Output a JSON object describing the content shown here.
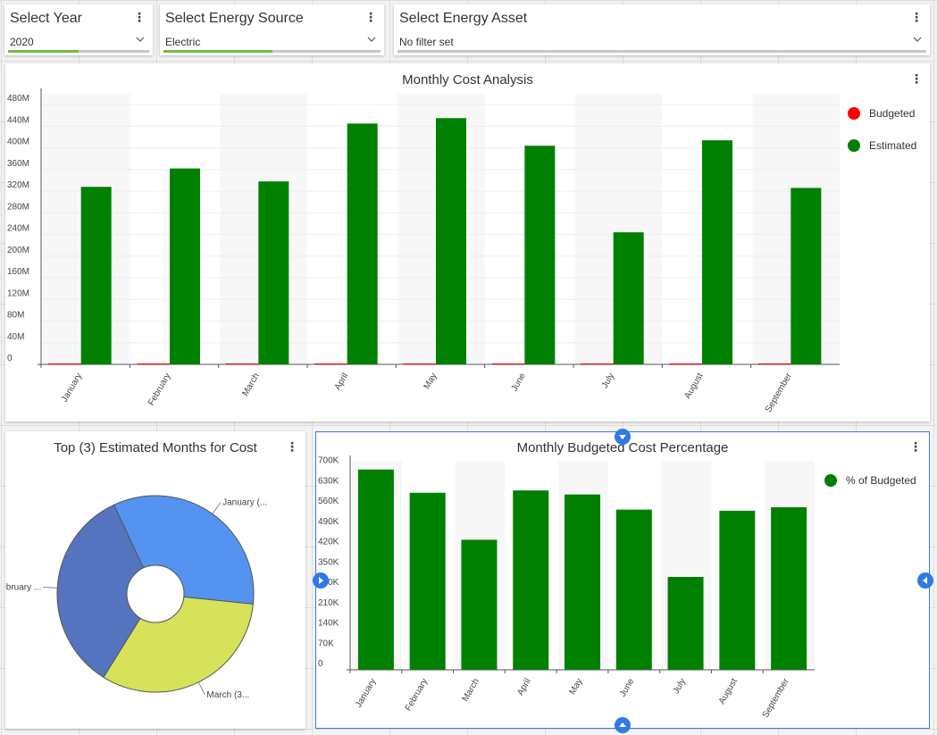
{
  "filters": [
    {
      "title": "Select Year",
      "value": "2020",
      "fill_fraction": 0.5
    },
    {
      "title": "Select Energy Source",
      "value": "Electric",
      "fill_fraction": 0.5
    },
    {
      "title": "Select Energy Asset",
      "value": "No filter set",
      "fill_fraction": 0
    }
  ],
  "menu_icon": "more-vertical-icon",
  "accent_color": "#6fbe44",
  "selection_color": "#2f7ae5",
  "monthly_cost": {
    "title": "Monthly Cost Analysis",
    "chart_data": {
      "type": "bar",
      "categories": [
        "January",
        "February",
        "March",
        "April",
        "May",
        "June",
        "July",
        "August",
        "September"
      ],
      "series": [
        {
          "name": "Budgeted",
          "color": "#ff0000",
          "values": [
            0.3,
            0.3,
            0.3,
            0.3,
            0.3,
            0.3,
            0.3,
            0.3,
            0.3
          ]
        },
        {
          "name": "Estimated",
          "color": "#008000",
          "values": [
            328,
            362,
            338,
            445,
            455,
            404,
            244,
            414,
            326
          ]
        }
      ],
      "ylim": [
        0,
        500
      ],
      "yticks": [
        "0",
        "40M",
        "80M",
        "120M",
        "160M",
        "200M",
        "240M",
        "280M",
        "320M",
        "360M",
        "400M",
        "440M",
        "480M"
      ],
      "ytick_values": [
        0,
        40,
        80,
        120,
        160,
        200,
        240,
        280,
        320,
        360,
        400,
        440,
        480
      ],
      "legend_position": "top-right",
      "grid": true
    }
  },
  "top_months": {
    "title": "Top (3) Estimated Months for Cost",
    "chart_data": {
      "type": "pie",
      "donut": true,
      "labels": [
        "January (...",
        "March (3...",
        "February ..."
      ],
      "values": [
        33.6,
        32.2,
        34.2
      ],
      "colors": [
        "#5593f0",
        "#d6e25a",
        "#5574c0"
      ]
    }
  },
  "budgeted_pct": {
    "title": "Monthly Budgeted Cost Percentage",
    "chart_data": {
      "type": "bar",
      "categories": [
        "January",
        "February",
        "March",
        "April",
        "May",
        "June",
        "July",
        "August",
        "September"
      ],
      "series": [
        {
          "name": "% of Budgeted",
          "color": "#008000",
          "values": [
            690,
            610,
            448,
            618,
            604,
            552,
            320,
            548,
            560
          ]
        }
      ],
      "ylim": [
        0,
        720
      ],
      "yticks": [
        "0",
        "70K",
        "140K",
        "210K",
        "280K",
        "350K",
        "420K",
        "490K",
        "560K",
        "630K",
        "700K"
      ],
      "ytick_values": [
        0,
        70,
        140,
        210,
        280,
        350,
        420,
        490,
        560,
        630,
        700
      ],
      "legend_position": "top-right",
      "grid": false
    }
  },
  "handles": [
    "resize-handle-top",
    "resize-handle-bottom",
    "resize-handle-left",
    "resize-handle-right"
  ]
}
